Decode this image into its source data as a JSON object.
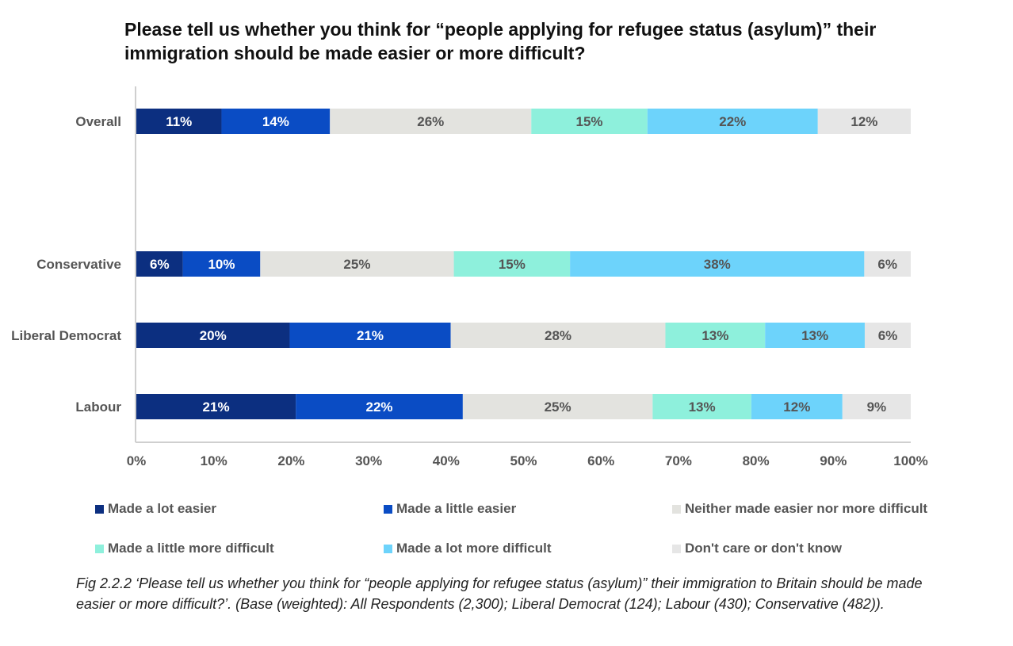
{
  "title": "Please tell us whether you think for “people applying for refugee status (asylum)” their immigration should be made easier or more difficult?",
  "chart_data": {
    "type": "bar",
    "orientation": "horizontal",
    "stacked": true,
    "categories": [
      "Overall",
      "Conservative",
      "Liberal Democrat",
      "Labour"
    ],
    "series": [
      {
        "name": "Made a lot easier",
        "color": "#0c2f80",
        "values": [
          11,
          6,
          20,
          21
        ]
      },
      {
        "name": "Made a little easier",
        "color": "#0a4cc4",
        "values": [
          14,
          10,
          21,
          22
        ]
      },
      {
        "name": "Neither made easier nor more difficult",
        "color": "#e3e3df",
        "values": [
          26,
          25,
          28,
          25
        ]
      },
      {
        "name": "Made a little more difficult",
        "color": "#8ef0dc",
        "values": [
          15,
          15,
          13,
          13
        ]
      },
      {
        "name": "Made a lot more difficult",
        "color": "#6dd3fb",
        "values": [
          22,
          38,
          13,
          12
        ]
      },
      {
        "name": "Don't care or don't know",
        "color": "#e6e6e6",
        "values": [
          12,
          6,
          6,
          9
        ]
      }
    ],
    "x_ticks": [
      "0%",
      "10%",
      "20%",
      "30%",
      "40%",
      "50%",
      "60%",
      "70%",
      "80%",
      "90%",
      "100%"
    ],
    "xlim": [
      0,
      100
    ],
    "grid": false,
    "legend_position": "bottom"
  },
  "caption": {
    "fig_label": "Fig 2.2.2",
    "text": " ‘Please tell us whether you think for “people applying for refugee status (asylum)” their immigration to Britain should be made easier or more difficult?’. (Base (weighted): All Respondents (2,300); Liberal Democrat (124); Labour (430); Conservative (482))."
  }
}
